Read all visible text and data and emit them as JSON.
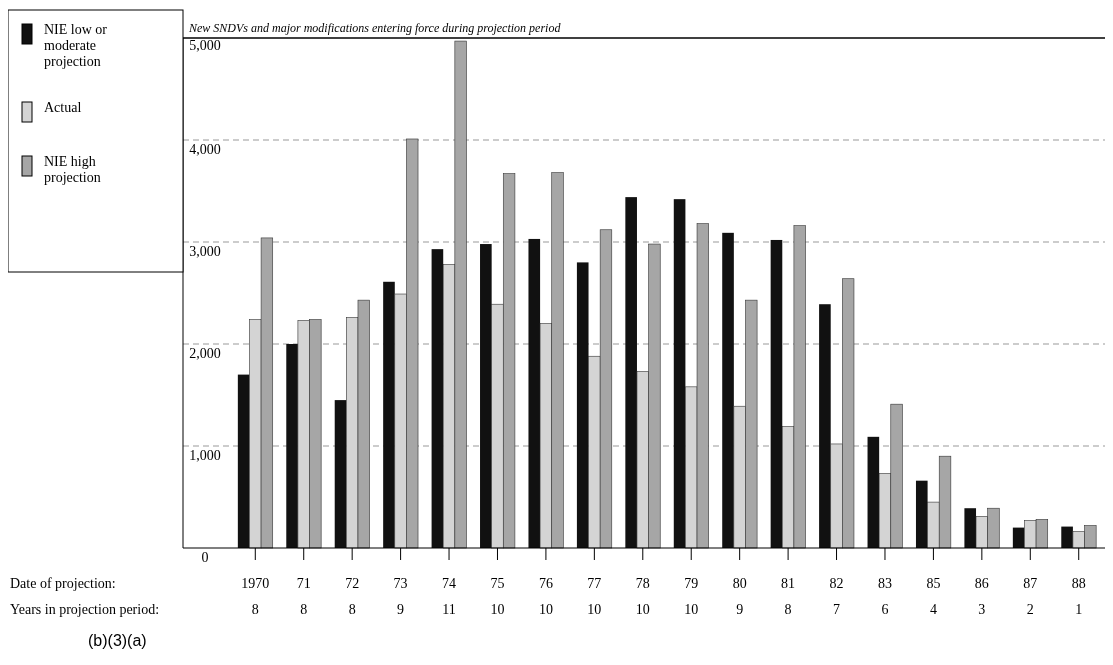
{
  "chart_data": {
    "type": "bar",
    "title": "New SNDVs and major modifications entering force during projection period",
    "categories": [
      "1970",
      "71",
      "72",
      "73",
      "74",
      "75",
      "76",
      "77",
      "78",
      "79",
      "80",
      "81",
      "82",
      "83",
      "85",
      "86",
      "87",
      "88"
    ],
    "series": [
      {
        "name": "NIE low or moderate projection",
        "color": "#111111",
        "values": [
          1700,
          2000,
          1450,
          2610,
          2930,
          2980,
          3030,
          2800,
          3440,
          3420,
          3090,
          3020,
          2390,
          1090,
          660,
          390,
          200,
          210
        ]
      },
      {
        "name": "Actual",
        "color": "#d4d4d4",
        "values": [
          2240,
          2230,
          2260,
          2490,
          2780,
          2390,
          2200,
          1880,
          1730,
          1580,
          1390,
          1190,
          1020,
          730,
          450,
          310,
          270,
          160
        ]
      },
      {
        "name": "NIE high projection",
        "color": "#a6a6a6",
        "values": [
          3040,
          2240,
          2430,
          4010,
          4970,
          3670,
          3680,
          3120,
          2980,
          3180,
          2430,
          3160,
          2640,
          1410,
          900,
          390,
          280,
          220
        ]
      }
    ],
    "ylim": [
      0,
      5000
    ],
    "yticks": [
      0,
      {
        "value": 1000,
        "label": "1,000"
      },
      {
        "value": 2000,
        "label": "2,000"
      },
      {
        "value": 3000,
        "label": "3,000"
      },
      {
        "value": 4000,
        "label": "4,000"
      },
      {
        "value": 5000,
        "label": "5,000"
      }
    ],
    "grid": "y",
    "legend": "top left",
    "annotations": [
      "Date of projection:",
      "Years in projection period:",
      "8",
      "8",
      "8",
      "9",
      "11",
      "10",
      "10",
      "10",
      "10",
      "10",
      "9",
      "8",
      "7",
      "6",
      "4",
      "3",
      "2",
      "1",
      "(b)(3)(a)"
    ]
  }
}
